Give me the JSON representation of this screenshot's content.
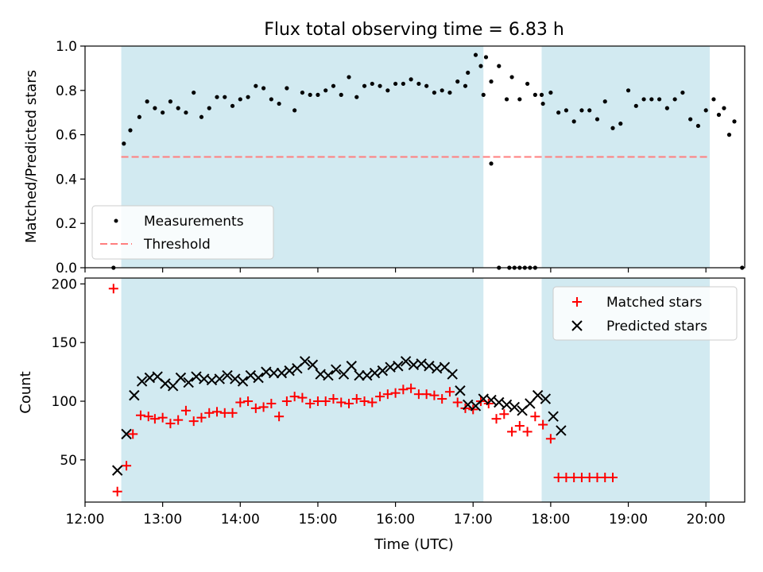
{
  "chart_data": [
    {
      "type": "scatter",
      "title": "Flux total observing time = 6.83 h",
      "xlabel": "",
      "ylabel": "Matched/Predicted stars",
      "xlim": [
        "12:00",
        "20:30"
      ],
      "ylim": [
        0.0,
        1.0
      ],
      "x_tick_labels": [],
      "y_tick_labels": [
        "0.0",
        "0.2",
        "0.4",
        "0.6",
        "0.8",
        "1.0"
      ],
      "legend_position": "lower-left",
      "shaded_intervals": [
        {
          "start": "12:28",
          "end": "17:08"
        },
        {
          "start": "17:53",
          "end": "20:03"
        }
      ],
      "shade_color": "#add8e6",
      "series": [
        {
          "name": "Measurements",
          "marker": "dot",
          "color": "#000000",
          "points": [
            [
              "12:22",
              0.0
            ],
            [
              "12:30",
              0.56
            ],
            [
              "12:35",
              0.62
            ],
            [
              "12:42",
              0.68
            ],
            [
              "12:48",
              0.75
            ],
            [
              "12:54",
              0.72
            ],
            [
              "13:00",
              0.7
            ],
            [
              "13:06",
              0.75
            ],
            [
              "13:12",
              0.72
            ],
            [
              "13:18",
              0.7
            ],
            [
              "13:24",
              0.79
            ],
            [
              "13:30",
              0.68
            ],
            [
              "13:36",
              0.72
            ],
            [
              "13:42",
              0.77
            ],
            [
              "13:48",
              0.77
            ],
            [
              "13:54",
              0.73
            ],
            [
              "14:00",
              0.76
            ],
            [
              "14:06",
              0.77
            ],
            [
              "14:12",
              0.82
            ],
            [
              "14:18",
              0.81
            ],
            [
              "14:24",
              0.76
            ],
            [
              "14:30",
              0.74
            ],
            [
              "14:36",
              0.81
            ],
            [
              "14:42",
              0.71
            ],
            [
              "14:48",
              0.79
            ],
            [
              "14:54",
              0.78
            ],
            [
              "15:00",
              0.78
            ],
            [
              "15:06",
              0.8
            ],
            [
              "15:12",
              0.82
            ],
            [
              "15:18",
              0.78
            ],
            [
              "15:24",
              0.86
            ],
            [
              "15:30",
              0.77
            ],
            [
              "15:36",
              0.82
            ],
            [
              "15:42",
              0.83
            ],
            [
              "15:48",
              0.82
            ],
            [
              "15:54",
              0.8
            ],
            [
              "16:00",
              0.83
            ],
            [
              "16:06",
              0.83
            ],
            [
              "16:12",
              0.85
            ],
            [
              "16:18",
              0.83
            ],
            [
              "16:24",
              0.82
            ],
            [
              "16:30",
              0.79
            ],
            [
              "16:36",
              0.8
            ],
            [
              "16:42",
              0.79
            ],
            [
              "16:48",
              0.84
            ],
            [
              "16:54",
              0.82
            ],
            [
              "16:56",
              0.88
            ],
            [
              "17:02",
              0.96
            ],
            [
              "17:06",
              0.91
            ],
            [
              "17:10",
              0.95
            ],
            [
              "17:14",
              0.84
            ],
            [
              "17:20",
              0.91
            ],
            [
              "17:26",
              0.76
            ],
            [
              "17:30",
              0.86
            ],
            [
              "17:36",
              0.76
            ],
            [
              "17:42",
              0.83
            ],
            [
              "17:48",
              0.78
            ],
            [
              "17:53",
              0.78
            ],
            [
              "17:08",
              0.78
            ],
            [
              "17:14",
              0.47
            ],
            [
              "17:20",
              0.0
            ],
            [
              "17:28",
              0.0
            ],
            [
              "17:32",
              0.0
            ],
            [
              "17:36",
              0.0
            ],
            [
              "17:40",
              0.0
            ],
            [
              "17:44",
              0.0
            ],
            [
              "17:48",
              0.0
            ],
            [
              "17:54",
              0.74
            ],
            [
              "18:00",
              0.79
            ],
            [
              "18:06",
              0.7
            ],
            [
              "18:12",
              0.71
            ],
            [
              "18:18",
              0.66
            ],
            [
              "18:24",
              0.71
            ],
            [
              "18:30",
              0.71
            ],
            [
              "18:36",
              0.67
            ],
            [
              "18:42",
              0.75
            ],
            [
              "18:48",
              0.63
            ],
            [
              "18:54",
              0.65
            ],
            [
              "19:00",
              0.8
            ],
            [
              "19:06",
              0.73
            ],
            [
              "19:12",
              0.76
            ],
            [
              "19:18",
              0.76
            ],
            [
              "19:24",
              0.76
            ],
            [
              "19:30",
              0.72
            ],
            [
              "19:36",
              0.76
            ],
            [
              "19:42",
              0.79
            ],
            [
              "19:48",
              0.67
            ],
            [
              "19:54",
              0.64
            ],
            [
              "20:00",
              0.71
            ],
            [
              "20:06",
              0.76
            ],
            [
              "20:10",
              0.69
            ],
            [
              "20:14",
              0.72
            ],
            [
              "20:18",
              0.6
            ],
            [
              "20:22",
              0.66
            ],
            [
              "20:28",
              0.0
            ]
          ]
        },
        {
          "name": "Threshold",
          "marker": "dashed-line",
          "color": "#ff7f7f",
          "points": [
            [
              "12:28",
              0.5
            ],
            [
              "20:03",
              0.5
            ]
          ]
        }
      ]
    },
    {
      "type": "scatter",
      "title": "",
      "xlabel": "Time (UTC)",
      "ylabel": "Count",
      "xlim": [
        "12:00",
        "20:30"
      ],
      "ylim": [
        14,
        205
      ],
      "x_tick_labels": [
        "12:00",
        "13:00",
        "14:00",
        "15:00",
        "16:00",
        "17:00",
        "18:00",
        "19:00",
        "20:00"
      ],
      "y_tick_labels": [
        "50",
        "100",
        "150",
        "200"
      ],
      "legend_position": "upper-right",
      "shaded_intervals": [
        {
          "start": "12:28",
          "end": "17:08"
        },
        {
          "start": "17:53",
          "end": "20:03"
        }
      ],
      "shade_color": "#add8e6",
      "series": [
        {
          "name": "Matched stars",
          "marker": "plus",
          "color": "#ff0000",
          "points": [
            [
              "12:22",
              196
            ],
            [
              "12:25",
              23
            ],
            [
              "12:32",
              45
            ],
            [
              "12:37",
              72
            ],
            [
              "12:43",
              88
            ],
            [
              "12:49",
              87
            ],
            [
              "12:54",
              85
            ],
            [
              "13:00",
              86
            ],
            [
              "13:06",
              81
            ],
            [
              "13:12",
              84
            ],
            [
              "13:18",
              92
            ],
            [
              "13:24",
              83
            ],
            [
              "13:30",
              86
            ],
            [
              "13:36",
              90
            ],
            [
              "13:42",
              91
            ],
            [
              "13:48",
              90
            ],
            [
              "13:54",
              90
            ],
            [
              "14:00",
              99
            ],
            [
              "14:06",
              100
            ],
            [
              "14:12",
              94
            ],
            [
              "14:18",
              95
            ],
            [
              "14:24",
              98
            ],
            [
              "14:30",
              87
            ],
            [
              "14:36",
              100
            ],
            [
              "14:42",
              104
            ],
            [
              "14:48",
              103
            ],
            [
              "14:54",
              98
            ],
            [
              "15:00",
              100
            ],
            [
              "15:06",
              100
            ],
            [
              "15:12",
              102
            ],
            [
              "15:18",
              99
            ],
            [
              "15:24",
              98
            ],
            [
              "15:30",
              102
            ],
            [
              "15:36",
              100
            ],
            [
              "15:42",
              99
            ],
            [
              "15:48",
              104
            ],
            [
              "15:54",
              106
            ],
            [
              "16:00",
              107
            ],
            [
              "16:06",
              110
            ],
            [
              "16:12",
              111
            ],
            [
              "16:18",
              106
            ],
            [
              "16:24",
              106
            ],
            [
              "16:30",
              105
            ],
            [
              "16:36",
              102
            ],
            [
              "16:42",
              108
            ],
            [
              "16:48",
              99
            ],
            [
              "16:54",
              94
            ],
            [
              "17:00",
              93
            ],
            [
              "17:06",
              100
            ],
            [
              "17:12",
              98
            ],
            [
              "17:18",
              85
            ],
            [
              "17:24",
              89
            ],
            [
              "17:30",
              74
            ],
            [
              "17:36",
              79
            ],
            [
              "17:42",
              74
            ],
            [
              "17:48",
              87
            ],
            [
              "17:54",
              80
            ],
            [
              "18:00",
              68
            ],
            [
              "18:06",
              35
            ],
            [
              "18:12",
              35
            ],
            [
              "18:18",
              35
            ],
            [
              "18:24",
              35
            ],
            [
              "18:30",
              35
            ],
            [
              "18:36",
              35
            ],
            [
              "18:42",
              35
            ],
            [
              "18:48",
              35
            ]
          ]
        },
        {
          "name": "Predicted stars",
          "marker": "x",
          "color": "#000000",
          "points": [
            [
              "12:25",
              41
            ],
            [
              "12:32",
              72
            ],
            [
              "12:38",
              105
            ],
            [
              "12:44",
              117
            ],
            [
              "12:50",
              120
            ],
            [
              "12:56",
              121
            ],
            [
              "13:02",
              115
            ],
            [
              "13:08",
              113
            ],
            [
              "13:14",
              120
            ],
            [
              "13:20",
              116
            ],
            [
              "13:26",
              121
            ],
            [
              "13:32",
              119
            ],
            [
              "13:38",
              118
            ],
            [
              "13:44",
              119
            ],
            [
              "13:50",
              122
            ],
            [
              "13:56",
              119
            ],
            [
              "14:02",
              117
            ],
            [
              "14:08",
              122
            ],
            [
              "14:14",
              120
            ],
            [
              "14:20",
              125
            ],
            [
              "14:26",
              124
            ],
            [
              "14:32",
              124
            ],
            [
              "14:38",
              126
            ],
            [
              "14:44",
              128
            ],
            [
              "14:50",
              134
            ],
            [
              "14:56",
              131
            ],
            [
              "15:02",
              123
            ],
            [
              "15:08",
              122
            ],
            [
              "15:14",
              127
            ],
            [
              "15:20",
              123
            ],
            [
              "15:26",
              130
            ],
            [
              "15:32",
              122
            ],
            [
              "15:38",
              122
            ],
            [
              "15:44",
              124
            ],
            [
              "15:50",
              126
            ],
            [
              "15:56",
              129
            ],
            [
              "16:02",
              130
            ],
            [
              "16:08",
              134
            ],
            [
              "16:14",
              131
            ],
            [
              "16:20",
              132
            ],
            [
              "16:26",
              130
            ],
            [
              "16:32",
              128
            ],
            [
              "16:38",
              129
            ],
            [
              "16:44",
              123
            ],
            [
              "16:50",
              109
            ],
            [
              "16:56",
              97
            ],
            [
              "17:02",
              96
            ],
            [
              "17:08",
              102
            ],
            [
              "17:14",
              101
            ],
            [
              "17:20",
              99
            ],
            [
              "17:26",
              97
            ],
            [
              "17:32",
              95
            ],
            [
              "17:38",
              92
            ],
            [
              "17:44",
              98
            ],
            [
              "17:50",
              105
            ],
            [
              "17:56",
              102
            ],
            [
              "18:02",
              87
            ],
            [
              "18:08",
              75
            ]
          ]
        }
      ]
    }
  ]
}
